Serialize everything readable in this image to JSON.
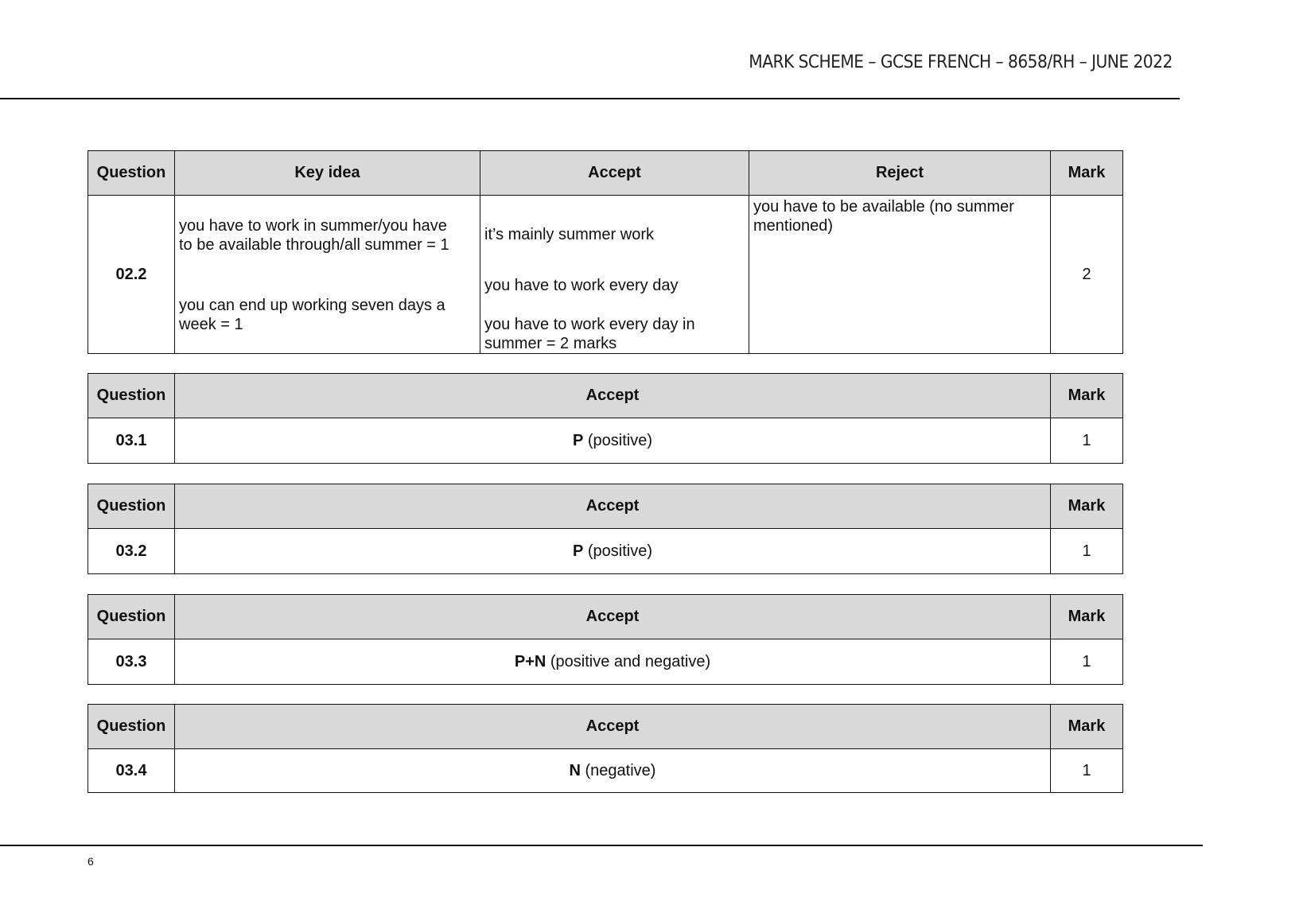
{
  "header": {
    "title": "MARK SCHEME – GCSE FRENCH – 8658/RH – JUNE 2022"
  },
  "table1": {
    "headers": [
      "Question",
      "Key idea",
      "Accept",
      "Reject",
      "Mark"
    ],
    "question": "02.2",
    "key_idea": [
      "you have to work in summer/you have",
      "to be available through/all summer = 1",
      "you can end up working seven days a",
      "week = 1"
    ],
    "accept": [
      "it’s mainly summer work",
      "you have to work every day",
      "you have to work every day in",
      "summer = 2 marks"
    ],
    "reject": [
      "you have to be available (no summer",
      "mentioned)"
    ],
    "mark": "2"
  },
  "small_tables": [
    {
      "headers": [
        "Question",
        "Accept",
        "Mark"
      ],
      "question": "03.1",
      "code": "P",
      "desc": " (positive)",
      "mark": "1"
    },
    {
      "headers": [
        "Question",
        "Accept",
        "Mark"
      ],
      "question": "03.2",
      "code": "P",
      "desc": " (positive)",
      "mark": "1"
    },
    {
      "headers": [
        "Question",
        "Accept",
        "Mark"
      ],
      "question": "03.3",
      "code": "P+N",
      "desc": " (positive and negative)",
      "mark": "1"
    },
    {
      "headers": [
        "Question",
        "Accept",
        "Mark"
      ],
      "question": "03.4",
      "code": "N",
      "desc": " (negative)",
      "mark": "1"
    }
  ],
  "footer": {
    "page_number": "6"
  }
}
